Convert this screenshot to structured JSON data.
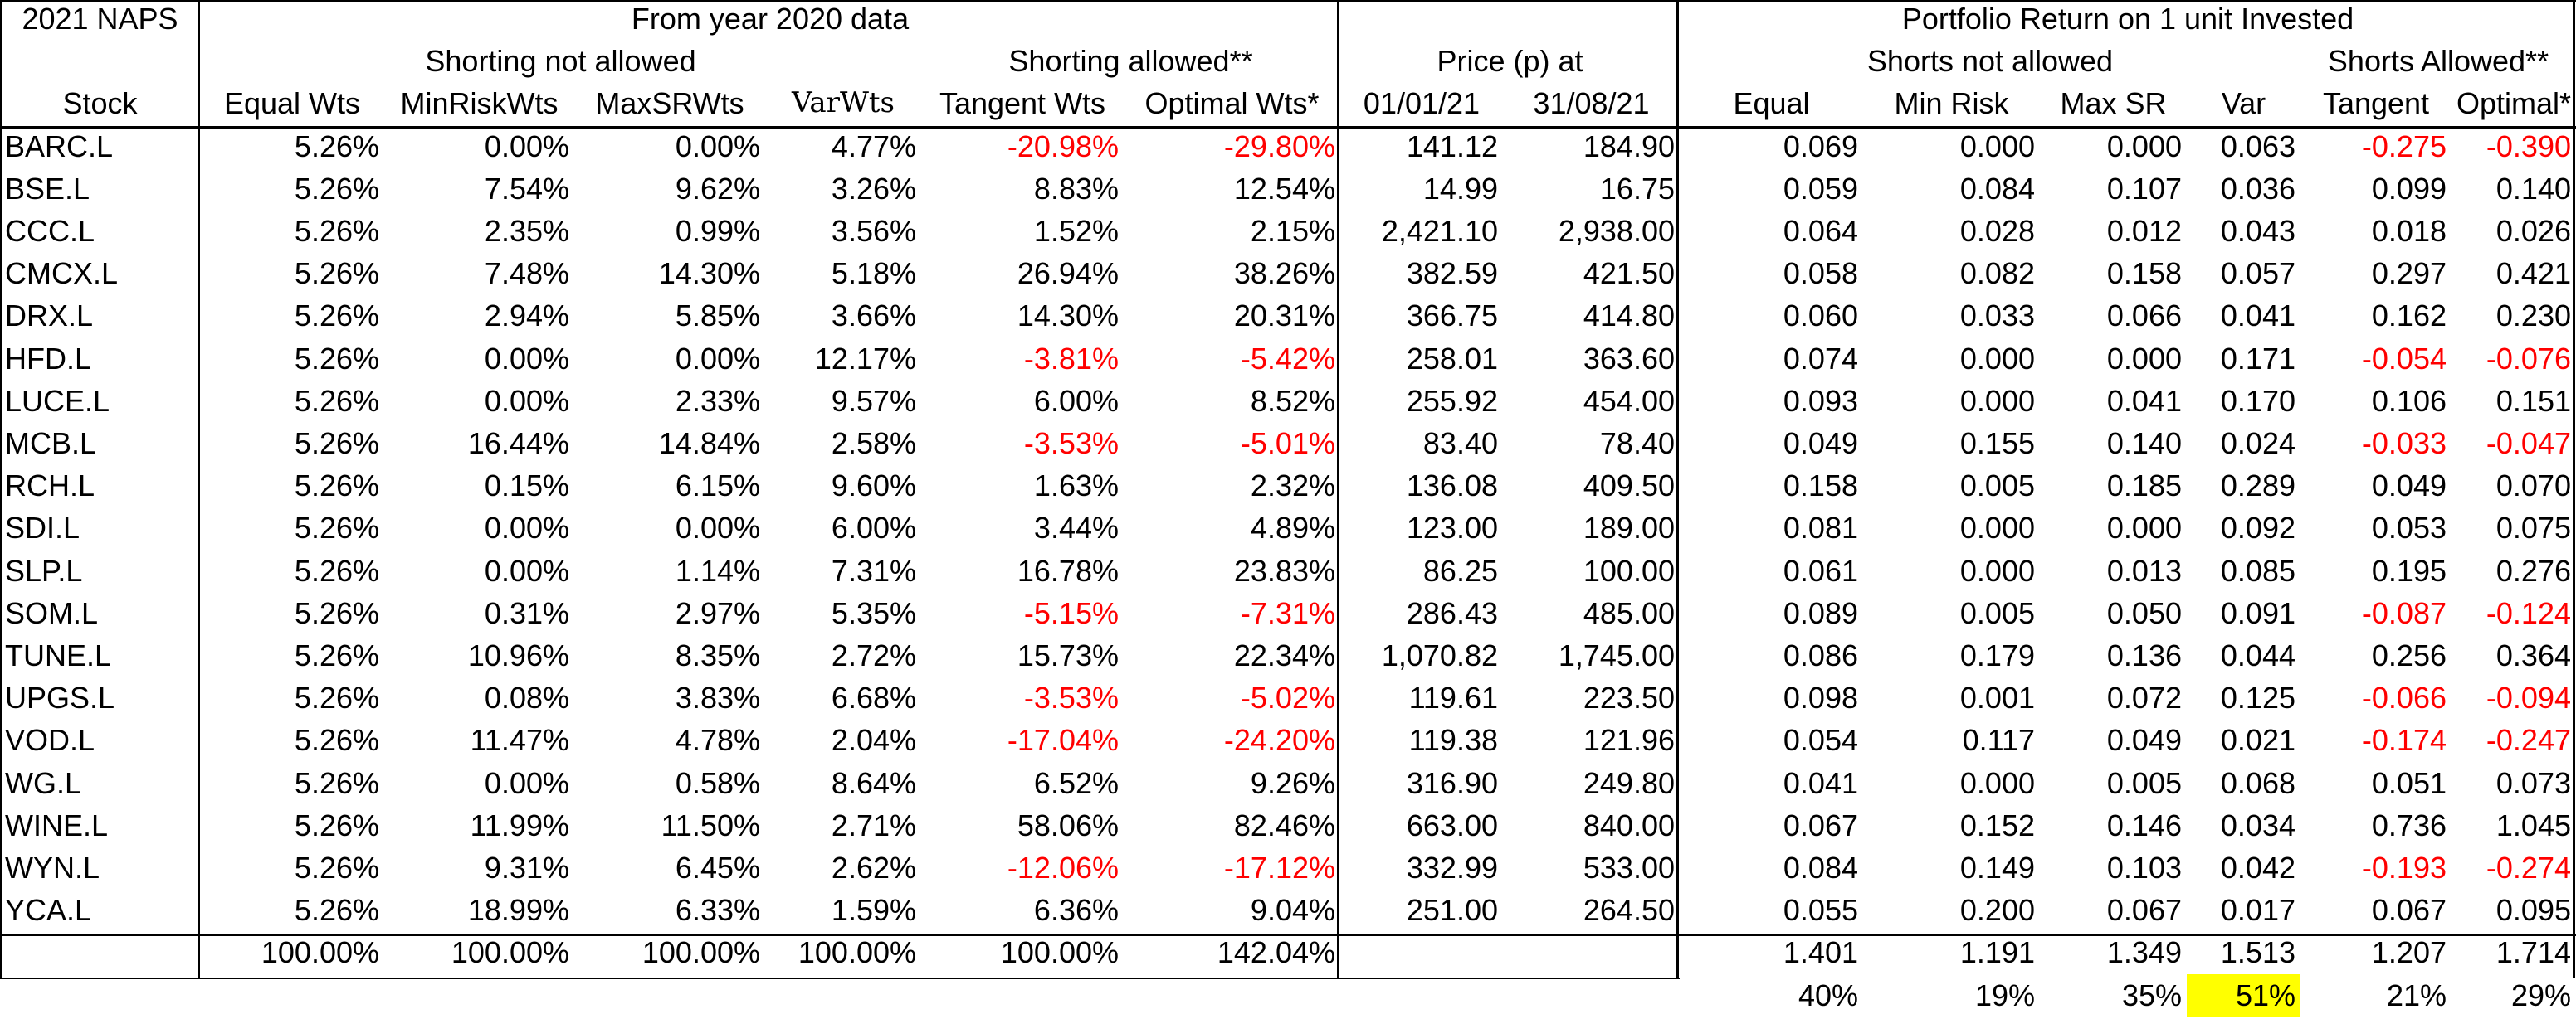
{
  "header": {
    "title": "2021 NAPS",
    "stock_label": "Stock",
    "group_from_year": "From year 2020 data",
    "group_short_not_allowed": "Shorting not allowed",
    "group_short_allowed": "Shorting allowed**",
    "group_price": "Price (p) at",
    "group_return": "Portfolio Return on 1 unit Invested",
    "group_ret_short_not": "Shorts not allowed",
    "group_ret_short_allowed": "Shorts Allowed**",
    "columns": [
      "Equal Wts",
      "MinRiskWts",
      "MaxSRWts",
      "VarWts",
      "Tangent Wts",
      "Optimal Wts*",
      "01/01/21",
      "31/08/21",
      "Equal",
      "Min Risk",
      "Max SR",
      "Var",
      "Tangent",
      "Optimal*"
    ]
  },
  "rows": [
    {
      "stock": "BARC.L",
      "w": [
        "5.26%",
        "0.00%",
        "0.00%",
        "4.77%",
        "-20.98%",
        "-29.80%"
      ],
      "p": [
        "141.12",
        "184.90"
      ],
      "r": [
        "0.069",
        "0.000",
        "0.000",
        "0.063",
        "-0.275",
        "-0.390"
      ]
    },
    {
      "stock": "BSE.L",
      "w": [
        "5.26%",
        "7.54%",
        "9.62%",
        "3.26%",
        "8.83%",
        "12.54%"
      ],
      "p": [
        "14.99",
        "16.75"
      ],
      "r": [
        "0.059",
        "0.084",
        "0.107",
        "0.036",
        "0.099",
        "0.140"
      ]
    },
    {
      "stock": "CCC.L",
      "w": [
        "5.26%",
        "2.35%",
        "0.99%",
        "3.56%",
        "1.52%",
        "2.15%"
      ],
      "p": [
        "2,421.10",
        "2,938.00"
      ],
      "r": [
        "0.064",
        "0.028",
        "0.012",
        "0.043",
        "0.018",
        "0.026"
      ]
    },
    {
      "stock": "CMCX.L",
      "w": [
        "5.26%",
        "7.48%",
        "14.30%",
        "5.18%",
        "26.94%",
        "38.26%"
      ],
      "p": [
        "382.59",
        "421.50"
      ],
      "r": [
        "0.058",
        "0.082",
        "0.158",
        "0.057",
        "0.297",
        "0.421"
      ]
    },
    {
      "stock": "DRX.L",
      "w": [
        "5.26%",
        "2.94%",
        "5.85%",
        "3.66%",
        "14.30%",
        "20.31%"
      ],
      "p": [
        "366.75",
        "414.80"
      ],
      "r": [
        "0.060",
        "0.033",
        "0.066",
        "0.041",
        "0.162",
        "0.230"
      ]
    },
    {
      "stock": "HFD.L",
      "w": [
        "5.26%",
        "0.00%",
        "0.00%",
        "12.17%",
        "-3.81%",
        "-5.42%"
      ],
      "p": [
        "258.01",
        "363.60"
      ],
      "r": [
        "0.074",
        "0.000",
        "0.000",
        "0.171",
        "-0.054",
        "-0.076"
      ]
    },
    {
      "stock": "LUCE.L",
      "w": [
        "5.26%",
        "0.00%",
        "2.33%",
        "9.57%",
        "6.00%",
        "8.52%"
      ],
      "p": [
        "255.92",
        "454.00"
      ],
      "r": [
        "0.093",
        "0.000",
        "0.041",
        "0.170",
        "0.106",
        "0.151"
      ]
    },
    {
      "stock": "MCB.L",
      "w": [
        "5.26%",
        "16.44%",
        "14.84%",
        "2.58%",
        "-3.53%",
        "-5.01%"
      ],
      "p": [
        "83.40",
        "78.40"
      ],
      "r": [
        "0.049",
        "0.155",
        "0.140",
        "0.024",
        "-0.033",
        "-0.047"
      ]
    },
    {
      "stock": "RCH.L",
      "w": [
        "5.26%",
        "0.15%",
        "6.15%",
        "9.60%",
        "1.63%",
        "2.32%"
      ],
      "p": [
        "136.08",
        "409.50"
      ],
      "r": [
        "0.158",
        "0.005",
        "0.185",
        "0.289",
        "0.049",
        "0.070"
      ]
    },
    {
      "stock": "SDI.L",
      "w": [
        "5.26%",
        "0.00%",
        "0.00%",
        "6.00%",
        "3.44%",
        "4.89%"
      ],
      "p": [
        "123.00",
        "189.00"
      ],
      "r": [
        "0.081",
        "0.000",
        "0.000",
        "0.092",
        "0.053",
        "0.075"
      ]
    },
    {
      "stock": "SLP.L",
      "w": [
        "5.26%",
        "0.00%",
        "1.14%",
        "7.31%",
        "16.78%",
        "23.83%"
      ],
      "p": [
        "86.25",
        "100.00"
      ],
      "r": [
        "0.061",
        "0.000",
        "0.013",
        "0.085",
        "0.195",
        "0.276"
      ]
    },
    {
      "stock": "SOM.L",
      "w": [
        "5.26%",
        "0.31%",
        "2.97%",
        "5.35%",
        "-5.15%",
        "-7.31%"
      ],
      "p": [
        "286.43",
        "485.00"
      ],
      "r": [
        "0.089",
        "0.005",
        "0.050",
        "0.091",
        "-0.087",
        "-0.124"
      ]
    },
    {
      "stock": "TUNE.L",
      "w": [
        "5.26%",
        "10.96%",
        "8.35%",
        "2.72%",
        "15.73%",
        "22.34%"
      ],
      "p": [
        "1,070.82",
        "1,745.00"
      ],
      "r": [
        "0.086",
        "0.179",
        "0.136",
        "0.044",
        "0.256",
        "0.364"
      ]
    },
    {
      "stock": "UPGS.L",
      "w": [
        "5.26%",
        "0.08%",
        "3.83%",
        "6.68%",
        "-3.53%",
        "-5.02%"
      ],
      "p": [
        "119.61",
        "223.50"
      ],
      "r": [
        "0.098",
        "0.001",
        "0.072",
        "0.125",
        "-0.066",
        "-0.094"
      ]
    },
    {
      "stock": "VOD.L",
      "w": [
        "5.26%",
        "11.47%",
        "4.78%",
        "2.04%",
        "-17.04%",
        "-24.20%"
      ],
      "p": [
        "119.38",
        "121.96"
      ],
      "r": [
        "0.054",
        "0.117",
        "0.049",
        "0.021",
        "-0.174",
        "-0.247"
      ]
    },
    {
      "stock": "WG.L",
      "w": [
        "5.26%",
        "0.00%",
        "0.58%",
        "8.64%",
        "6.52%",
        "9.26%"
      ],
      "p": [
        "316.90",
        "249.80"
      ],
      "r": [
        "0.041",
        "0.000",
        "0.005",
        "0.068",
        "0.051",
        "0.073"
      ]
    },
    {
      "stock": "WINE.L",
      "w": [
        "5.26%",
        "11.99%",
        "11.50%",
        "2.71%",
        "58.06%",
        "82.46%"
      ],
      "p": [
        "663.00",
        "840.00"
      ],
      "r": [
        "0.067",
        "0.152",
        "0.146",
        "0.034",
        "0.736",
        "1.045"
      ]
    },
    {
      "stock": "WYN.L",
      "w": [
        "5.26%",
        "9.31%",
        "6.45%",
        "2.62%",
        "-12.06%",
        "-17.12%"
      ],
      "p": [
        "332.99",
        "533.00"
      ],
      "r": [
        "0.084",
        "0.149",
        "0.103",
        "0.042",
        "-0.193",
        "-0.274"
      ]
    },
    {
      "stock": "YCA.L",
      "w": [
        "5.26%",
        "18.99%",
        "6.33%",
        "1.59%",
        "6.36%",
        "9.04%"
      ],
      "p": [
        "251.00",
        "264.50"
      ],
      "r": [
        "0.055",
        "0.200",
        "0.067",
        "0.017",
        "0.067",
        "0.095"
      ]
    }
  ],
  "totals": {
    "w": [
      "100.00%",
      "100.00%",
      "100.00%",
      "100.00%",
      "100.00%",
      "142.04%"
    ],
    "r": [
      "1.401",
      "1.191",
      "1.349",
      "1.513",
      "1.207",
      "1.714"
    ],
    "pct": [
      "40%",
      "19%",
      "35%",
      "51%",
      "21%",
      "29%"
    ],
    "highlight_index": 3
  },
  "colors": {
    "negative": "#ff0000",
    "highlight": "#ffff00",
    "text": "#000000",
    "border": "#000000"
  }
}
